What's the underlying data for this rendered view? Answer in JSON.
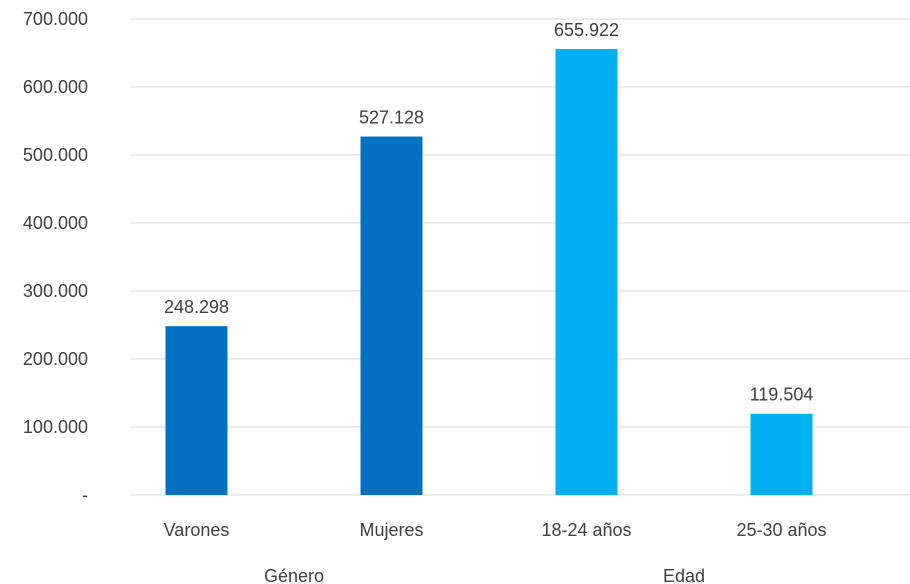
{
  "chart_data": {
    "type": "bar",
    "title": "",
    "xlabel": "",
    "ylabel": "",
    "ylim": [
      0,
      700000
    ],
    "yticks": [
      0,
      100000,
      200000,
      300000,
      400000,
      500000,
      600000,
      700000
    ],
    "ytick_labels": [
      "-",
      "100.000",
      "200.000",
      "300.000",
      "400.000",
      "500.000",
      "600.000",
      "700.000"
    ],
    "categories": [
      "Varones",
      "Mujeres",
      "18-24 años",
      "25-30 años"
    ],
    "values": [
      248298,
      527128,
      655922,
      119504
    ],
    "data_labels": [
      "248.298",
      "527.128",
      "655.922",
      "119.504"
    ],
    "groups": [
      {
        "label": "Género",
        "categories": [
          "Varones",
          "Mujeres"
        ],
        "color": "#0070C0"
      },
      {
        "label": "Edad",
        "categories": [
          "18-24 años",
          "25-30 años"
        ],
        "color": "#00B0F0"
      }
    ],
    "grid": true,
    "legend": "none"
  }
}
